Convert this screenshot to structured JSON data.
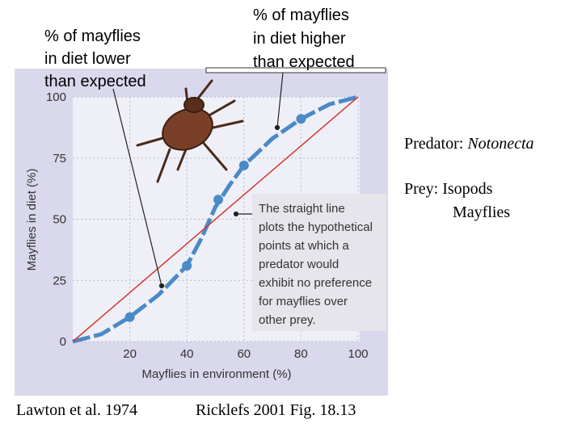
{
  "chart_data": {
    "type": "line",
    "x_label": "Mayflies in environment (%)",
    "y_label": "Mayflies in diet (%)",
    "xlim": [
      0,
      100
    ],
    "ylim": [
      0,
      100
    ],
    "xticks": [
      20,
      40,
      60,
      80,
      100
    ],
    "yticks": [
      0,
      25,
      50,
      75,
      100
    ],
    "grid": true,
    "series": [
      {
        "color": "#4a8ac8",
        "style": "dashed",
        "x": [
          0,
          10,
          20,
          30,
          40,
          45,
          50,
          55,
          60,
          70,
          80,
          90,
          100
        ],
        "values": [
          0,
          3,
          10,
          19,
          31,
          42,
          55,
          64,
          72,
          83,
          91,
          97,
          100
        ]
      },
      {
        "color": "#4a8ac8",
        "style": "points",
        "x": [
          20,
          40,
          51,
          60,
          80
        ],
        "values": [
          10,
          31,
          58,
          72,
          91
        ]
      },
      {
        "color": "#d23a2a",
        "style": "solid",
        "x": [
          0,
          100
        ],
        "values": [
          0,
          100
        ]
      }
    ],
    "inset_note": [
      "The straight line",
      "plots the hypothetical",
      "points at which a",
      "predator would",
      "exhibit no preference",
      "for mayflies over",
      "other prey."
    ]
  },
  "annotations": {
    "lower": [
      "% of mayflies",
      "in diet lower",
      "than expected"
    ],
    "higher": [
      "% of mayflies",
      "in diet higher",
      "than expected"
    ]
  },
  "side_text": {
    "predator_label": "Predator:",
    "predator_name": "Notonecta",
    "prey_label": "Prey: Isopods",
    "prey_second": "Mayflies"
  },
  "credits": [
    "Lawton et al. 1974",
    "Ricklefs 2001 Fig. 18.13"
  ]
}
